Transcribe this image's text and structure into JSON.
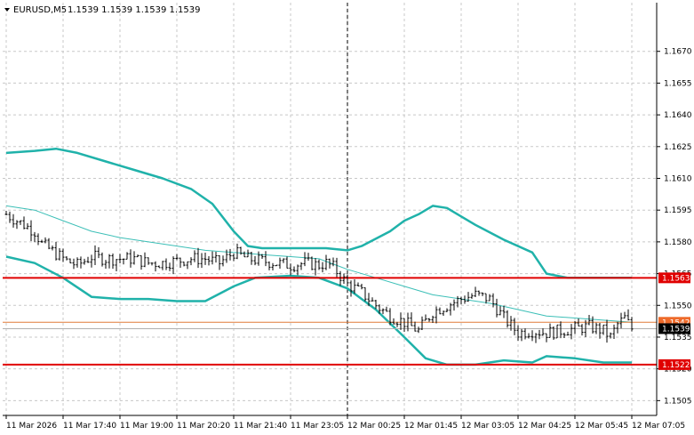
{
  "header": {
    "symbol": "EURUSD,M5",
    "quote": "1.1539 1.1539 1.1539 1.1539"
  },
  "colors": {
    "band": "#20b2aa",
    "middle_band": "#3cbfb7",
    "support_resistance": "#e00000",
    "current_line": "#e07b39",
    "bar": "#000000",
    "grid": "#c8c8c8",
    "tag_red": "#e00000",
    "tag_orange": "#ee6a2a",
    "tag_black": "#000000"
  },
  "chart_data": {
    "type": "line",
    "ylim": [
      1.1498,
      1.1693
    ],
    "y_ticks": [
      "1.1670",
      "1.1655",
      "1.1640",
      "1.1625",
      "1.1610",
      "1.1595",
      "1.1580",
      "1.1565",
      "1.1550",
      "1.1535",
      "1.1520",
      "1.1505"
    ],
    "x_ticks": [
      "11 Mar 2026",
      "11 Mar 17:40",
      "11 Mar 19:00",
      "11 Mar 20:20",
      "11 Mar 21:40",
      "11 Mar 23:05",
      "12 Mar 00:25",
      "12 Mar 01:45",
      "12 Mar 03:05",
      "12 Mar 04:25",
      "12 Mar 05:45",
      "12 Mar 07:05"
    ],
    "bars_per_tick": 16,
    "bar_count": 177,
    "price_bars_close_trace": [
      [
        0,
        1.1593
      ],
      [
        8,
        1.1585
      ],
      [
        10,
        1.1579
      ],
      [
        17,
        1.1571
      ],
      [
        20,
        1.1569
      ],
      [
        24,
        1.1573
      ],
      [
        28,
        1.1572
      ],
      [
        36,
        1.1572
      ],
      [
        40,
        1.157
      ],
      [
        44,
        1.157
      ],
      [
        52,
        1.1572
      ],
      [
        56,
        1.1572
      ],
      [
        60,
        1.157
      ],
      [
        64,
        1.1575
      ],
      [
        68,
        1.1572
      ],
      [
        76,
        1.157
      ],
      [
        80,
        1.1569
      ],
      [
        84,
        1.157
      ],
      [
        88,
        1.1569
      ],
      [
        90,
        1.157
      ],
      [
        92,
        1.1568
      ],
      [
        96,
        1.156
      ],
      [
        100,
        1.1556
      ],
      [
        104,
        1.155
      ],
      [
        108,
        1.1545
      ],
      [
        112,
        1.1542
      ],
      [
        116,
        1.1538
      ],
      [
        120,
        1.1547
      ],
      [
        124,
        1.155
      ],
      [
        128,
        1.1553
      ],
      [
        132,
        1.1555
      ],
      [
        136,
        1.1553
      ],
      [
        140,
        1.1544
      ],
      [
        144,
        1.1537
      ],
      [
        148,
        1.1538
      ],
      [
        152,
        1.1537
      ],
      [
        156,
        1.1538
      ],
      [
        160,
        1.1539
      ],
      [
        164,
        1.154
      ],
      [
        168,
        1.1538
      ],
      [
        170,
        1.1535
      ],
      [
        172,
        1.1541
      ],
      [
        174,
        1.1544
      ],
      [
        176,
        1.1539
      ]
    ],
    "series": [
      {
        "name": "",
        "values": [
          [
            0,
            1.1622
          ],
          [
            8,
            1.1623
          ],
          [
            14,
            1.1624
          ],
          [
            20,
            1.1622
          ],
          [
            28,
            1.1618
          ],
          [
            36,
            1.1614
          ],
          [
            44,
            1.161
          ],
          [
            52,
            1.1605
          ],
          [
            58,
            1.1598
          ],
          [
            64,
            1.1585
          ],
          [
            68,
            1.1578
          ],
          [
            72,
            1.1577
          ],
          [
            80,
            1.1577
          ],
          [
            90,
            1.1577
          ],
          [
            96,
            1.1576
          ],
          [
            100,
            1.1578
          ],
          [
            108,
            1.1585
          ],
          [
            112,
            1.159
          ],
          [
            116,
            1.1593
          ],
          [
            120,
            1.1597
          ],
          [
            124,
            1.1596
          ],
          [
            132,
            1.1588
          ],
          [
            140,
            1.1581
          ],
          [
            148,
            1.1575
          ],
          [
            152,
            1.1565
          ],
          [
            158,
            1.1563
          ],
          [
            164,
            1.1563
          ],
          [
            170,
            1.1563
          ],
          [
            176,
            1.1563
          ]
        ]
      },
      {
        "name": "",
        "values": [
          [
            0,
            1.1597
          ],
          [
            8,
            1.1595
          ],
          [
            16,
            1.159
          ],
          [
            24,
            1.1585
          ],
          [
            32,
            1.1582
          ],
          [
            40,
            1.158
          ],
          [
            48,
            1.1578
          ],
          [
            56,
            1.1576
          ],
          [
            64,
            1.1575
          ],
          [
            72,
            1.1574
          ],
          [
            80,
            1.1573
          ],
          [
            88,
            1.1572
          ],
          [
            96,
            1.1567
          ],
          [
            104,
            1.1563
          ],
          [
            112,
            1.1559
          ],
          [
            120,
            1.1555
          ],
          [
            128,
            1.1553
          ],
          [
            136,
            1.1551
          ],
          [
            144,
            1.1548
          ],
          [
            152,
            1.1545
          ],
          [
            160,
            1.1544
          ],
          [
            168,
            1.1543
          ],
          [
            176,
            1.1542
          ]
        ]
      },
      {
        "name": "",
        "values": [
          [
            0,
            1.1573
          ],
          [
            8,
            1.157
          ],
          [
            16,
            1.1563
          ],
          [
            24,
            1.1554
          ],
          [
            32,
            1.1553
          ],
          [
            40,
            1.1553
          ],
          [
            48,
            1.1552
          ],
          [
            56,
            1.1552
          ],
          [
            64,
            1.1559
          ],
          [
            70,
            1.1563
          ],
          [
            80,
            1.1564
          ],
          [
            88,
            1.1563
          ],
          [
            96,
            1.1558
          ],
          [
            104,
            1.1548
          ],
          [
            112,
            1.1535
          ],
          [
            118,
            1.1525
          ],
          [
            124,
            1.1522
          ],
          [
            132,
            1.1522
          ],
          [
            140,
            1.1524
          ],
          [
            148,
            1.1523
          ],
          [
            152,
            1.1526
          ],
          [
            160,
            1.1525
          ],
          [
            168,
            1.1523
          ],
          [
            176,
            1.1523
          ]
        ]
      }
    ],
    "levels": {
      "upper": "1.1563",
      "current": "1.1542",
      "bid": "1.1539",
      "lower": "1.1522"
    },
    "crosshair_bar": 96,
    "grid": true
  }
}
